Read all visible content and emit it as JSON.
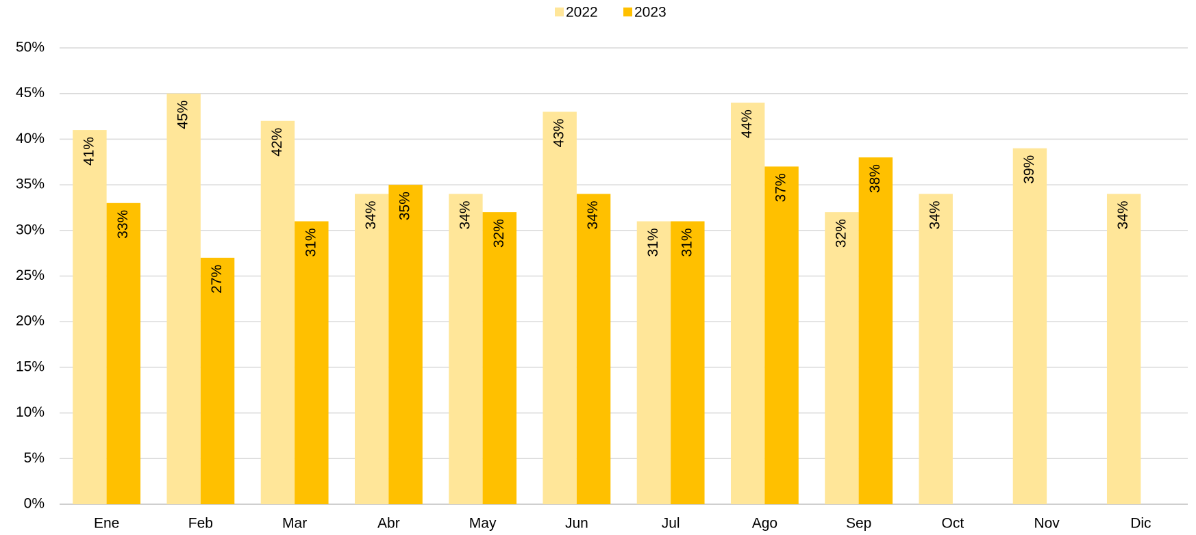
{
  "chart_data": {
    "type": "bar",
    "categories": [
      "Ene",
      "Feb",
      "Mar",
      "Abr",
      "May",
      "Jun",
      "Jul",
      "Ago",
      "Sep",
      "Oct",
      "Nov",
      "Dic"
    ],
    "series": [
      {
        "name": "2022",
        "color": "#FFE699",
        "values": [
          41,
          45,
          42,
          34,
          34,
          43,
          31,
          44,
          32,
          34,
          39,
          34
        ],
        "value_labels": [
          "41%",
          "45%",
          "42%",
          "34%",
          "34%",
          "43%",
          "31%",
          "44%",
          "32%",
          "34%",
          "39%",
          "34%"
        ]
      },
      {
        "name": "2023",
        "color": "#FFC000",
        "values": [
          33,
          27,
          31,
          35,
          32,
          34,
          31,
          37,
          38,
          null,
          null,
          null
        ],
        "value_labels": [
          "33%",
          "27%",
          "31%",
          "35%",
          "32%",
          "34%",
          "31%",
          "37%",
          "38%",
          null,
          null,
          null
        ]
      }
    ],
    "ylim": [
      0,
      50
    ],
    "yticks": [
      {
        "value": 0,
        "label": "0%"
      },
      {
        "value": 5,
        "label": "5%"
      },
      {
        "value": 10,
        "label": "10%"
      },
      {
        "value": 15,
        "label": "15%"
      },
      {
        "value": 20,
        "label": "20%"
      },
      {
        "value": 25,
        "label": "25%"
      },
      {
        "value": 30,
        "label": "30%"
      },
      {
        "value": 35,
        "label": "35%"
      },
      {
        "value": 40,
        "label": "40%"
      },
      {
        "value": 45,
        "label": "45%"
      },
      {
        "value": 50,
        "label": "50%"
      }
    ],
    "grid": true,
    "legend": "top"
  }
}
